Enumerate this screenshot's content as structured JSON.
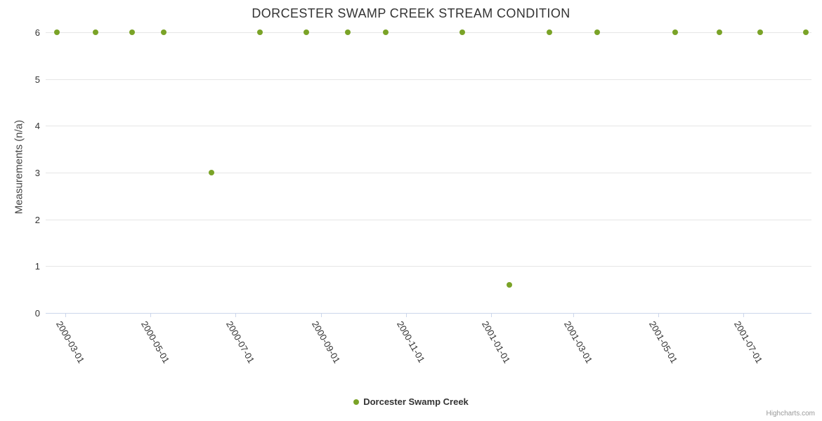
{
  "chart": {
    "title": "DORCESTER SWAMP CREEK STREAM CONDITION",
    "y_axis_title": "Measurements (n/a)",
    "legend_label": "Dorcester Swamp Creek",
    "credits": "Highcharts.com"
  },
  "colors": {
    "point": "#7aa327",
    "grid": "#e6e6e6",
    "axis_line": "#ccd6eb",
    "title_text": "#333333",
    "axis_title_text": "#444444",
    "label_text": "#333333",
    "credits_text": "#999999"
  },
  "chart_data": {
    "type": "scatter",
    "title": "DORCESTER SWAMP CREEK STREAM CONDITION",
    "xlabel": "",
    "ylabel": "Measurements (n/a)",
    "ylim": [
      0,
      6
    ],
    "y_ticks": [
      0,
      1,
      2,
      3,
      4,
      5,
      6
    ],
    "x_range": [
      "2000-02-16",
      "2001-08-19"
    ],
    "x_ticks": [
      "2000-03-01",
      "2000-05-01",
      "2000-07-01",
      "2000-09-01",
      "2000-11-01",
      "2001-01-01",
      "2001-03-01",
      "2001-05-01",
      "2001-07-01"
    ],
    "grid": "horizontal",
    "legend_position": "bottom-center",
    "series": [
      {
        "name": "Dorcester Swamp Creek",
        "points": [
          {
            "date": "2000-02-24",
            "value": 6
          },
          {
            "date": "2000-03-23",
            "value": 6
          },
          {
            "date": "2000-04-18",
            "value": 6
          },
          {
            "date": "2000-05-11",
            "value": 6
          },
          {
            "date": "2000-06-14",
            "value": 3
          },
          {
            "date": "2000-07-19",
            "value": 6
          },
          {
            "date": "2000-08-21",
            "value": 6
          },
          {
            "date": "2000-09-20",
            "value": 6
          },
          {
            "date": "2000-10-17",
            "value": 6
          },
          {
            "date": "2000-12-11",
            "value": 6
          },
          {
            "date": "2001-01-14",
            "value": 0.6
          },
          {
            "date": "2001-02-12",
            "value": 6
          },
          {
            "date": "2001-03-18",
            "value": 6
          },
          {
            "date": "2001-05-13",
            "value": 6
          },
          {
            "date": "2001-06-14",
            "value": 6
          },
          {
            "date": "2001-07-13",
            "value": 6
          },
          {
            "date": "2001-08-15",
            "value": 6
          }
        ]
      }
    ]
  }
}
